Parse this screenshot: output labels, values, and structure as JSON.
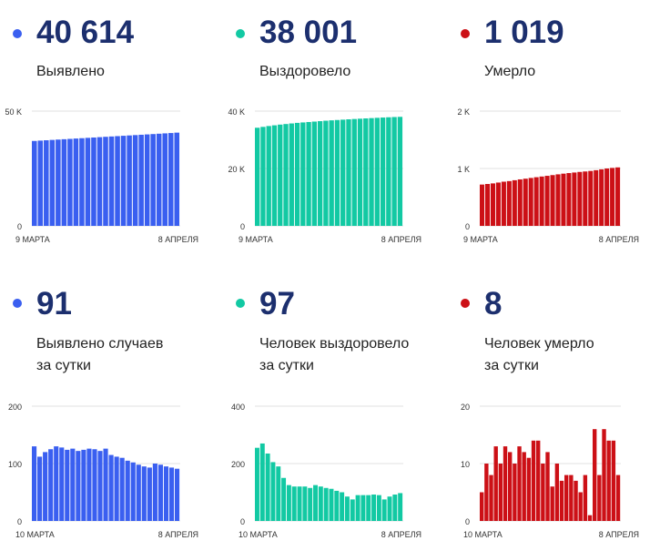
{
  "panels": [
    {
      "value": "40 614",
      "label": "Выявлено",
      "color": "#3a5ff0",
      "chart_data": {
        "type": "bar",
        "x_start_label": "9 МАРТА",
        "x_end_label": "8 АПРЕЛЯ",
        "yticks": [
          "50 K",
          "0"
        ],
        "ylim": [
          0,
          50000
        ],
        "values": [
          37000,
          37150,
          37300,
          37450,
          37600,
          37750,
          37900,
          38050,
          38200,
          38350,
          38500,
          38650,
          38800,
          38950,
          39100,
          39250,
          39400,
          39550,
          39700,
          39850,
          40000,
          40150,
          40300,
          40450,
          40614
        ]
      }
    },
    {
      "value": "38 001",
      "label": "Выздоровело",
      "color": "#12c9a3",
      "chart_data": {
        "type": "bar",
        "x_start_label": "9 МАРТА",
        "x_end_label": "8 АПРЕЛЯ",
        "yticks": [
          "40 K",
          "20 K",
          "0"
        ],
        "ylim": [
          0,
          40000
        ],
        "values": [
          34200,
          34500,
          34800,
          35050,
          35300,
          35500,
          35700,
          35900,
          36050,
          36200,
          36350,
          36500,
          36650,
          36780,
          36900,
          37020,
          37140,
          37250,
          37360,
          37460,
          37560,
          37660,
          37760,
          37850,
          37930,
          38001
        ]
      }
    },
    {
      "value": "1 019",
      "label": "Умерло",
      "color": "#cc1016",
      "chart_data": {
        "type": "bar",
        "x_start_label": "9 МАРТА",
        "x_end_label": "8 АПРЕЛЯ",
        "yticks": [
          "2 K",
          "1 K",
          "0"
        ],
        "ylim": [
          0,
          2000
        ],
        "values": [
          720,
          730,
          740,
          755,
          770,
          780,
          795,
          810,
          822,
          835,
          848,
          860,
          872,
          885,
          898,
          910,
          920,
          930,
          940,
          948,
          957,
          970,
          985,
          1000,
          1010,
          1019
        ]
      }
    },
    {
      "value": "91",
      "label": "Выявлено случаев\nза сутки",
      "color": "#3a5ff0",
      "chart_data": {
        "type": "bar",
        "x_start_label": "10 МАРТА",
        "x_end_label": "8 АПРЕЛЯ",
        "yticks": [
          "200",
          "100",
          "0"
        ],
        "ylim": [
          0,
          200
        ],
        "values": [
          130,
          112,
          120,
          125,
          130,
          128,
          124,
          126,
          122,
          124,
          126,
          125,
          122,
          126,
          115,
          112,
          110,
          105,
          102,
          98,
          95,
          93,
          100,
          98,
          95,
          93,
          91
        ]
      }
    },
    {
      "value": "97",
      "label": "Человек выздоровело\nза сутки",
      "color": "#12c9a3",
      "chart_data": {
        "type": "bar",
        "x_start_label": "10 МАРТА",
        "x_end_label": "8 АПРЕЛЯ",
        "yticks": [
          "400",
          "200",
          "0"
        ],
        "ylim": [
          0,
          400
        ],
        "values": [
          255,
          270,
          235,
          205,
          190,
          150,
          125,
          120,
          120,
          120,
          115,
          125,
          120,
          115,
          112,
          105,
          100,
          85,
          75,
          90,
          90,
          90,
          92,
          90,
          75,
          85,
          92,
          97
        ]
      }
    },
    {
      "value": "8",
      "label": "Человек умерло\nза сутки",
      "color": "#cc1016",
      "chart_data": {
        "type": "bar",
        "x_start_label": "10 МАРТА",
        "x_end_label": "8 АПРЕЛЯ",
        "yticks": [
          "20",
          "10",
          "0"
        ],
        "ylim": [
          0,
          20
        ],
        "values": [
          5,
          10,
          8,
          13,
          10,
          13,
          12,
          10,
          13,
          12,
          11,
          14,
          14,
          10,
          12,
          6,
          10,
          7,
          8,
          8,
          7,
          5,
          8,
          1,
          16,
          8,
          16,
          14,
          14,
          8
        ]
      }
    }
  ]
}
